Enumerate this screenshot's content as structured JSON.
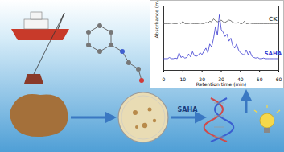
{
  "labels": {
    "arrow_label": "SAHA"
  },
  "chart_data": {
    "type": "line",
    "xlabel": "Retention time (min)",
    "ylabel": "Absorbance (mAU)",
    "x": [
      0,
      1,
      2,
      3,
      4,
      5,
      6,
      7,
      8,
      9,
      10,
      11,
      12,
      13,
      14,
      15,
      16,
      17,
      18,
      19,
      20,
      21,
      22,
      23,
      24,
      25,
      26,
      27,
      28,
      29,
      30,
      31,
      32,
      33,
      34,
      35,
      36,
      37,
      38,
      39,
      40,
      41,
      42,
      43,
      44,
      45,
      46,
      47,
      48,
      49,
      50,
      51,
      52,
      53,
      54,
      55,
      56,
      57,
      58,
      59,
      60
    ],
    "series": [
      {
        "name": "CK",
        "color": "#555555",
        "values": [
          80,
          80,
          80,
          80,
          81,
          80,
          80,
          80,
          82,
          80,
          84,
          80,
          80,
          80,
          81,
          80,
          80,
          80,
          80,
          81,
          80,
          80,
          82,
          81,
          84,
          83,
          88,
          85,
          83,
          84,
          86,
          83,
          82,
          84,
          86,
          85,
          82,
          81,
          81,
          82,
          80,
          80,
          84,
          80,
          80,
          81,
          80,
          80,
          80,
          80,
          80,
          80,
          80,
          80,
          80,
          80,
          80,
          80,
          80,
          80,
          80
        ]
      },
      {
        "name": "SAHA",
        "color": "#3b3bd0",
        "values": [
          20,
          20,
          20,
          22,
          20,
          20,
          21,
          20,
          30,
          22,
          24,
          21,
          22,
          28,
          23,
          32,
          25,
          24,
          26,
          30,
          27,
          33,
          38,
          30,
          45,
          40,
          55,
          75,
          60,
          95,
          70,
          65,
          58,
          62,
          50,
          55,
          42,
          38,
          45,
          35,
          30,
          28,
          26,
          35,
          27,
          32,
          24,
          22,
          21,
          22,
          20,
          20,
          21,
          20,
          20,
          20,
          20,
          20,
          20,
          20,
          20
        ]
      }
    ],
    "xlim": [
      0,
      60
    ],
    "xticks": [
      0,
      10,
      20,
      30,
      40,
      50,
      60
    ],
    "ylim": [
      0,
      110
    ],
    "tick_labels": "x"
  }
}
